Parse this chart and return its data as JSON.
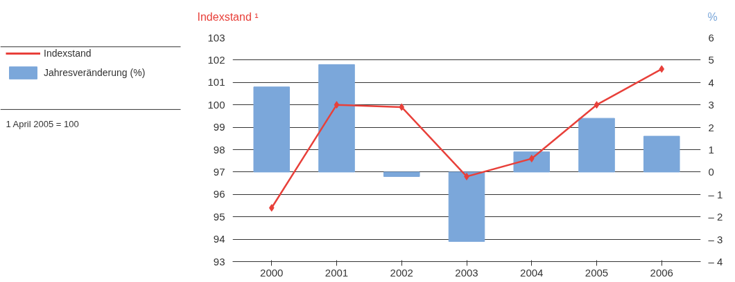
{
  "chart_data": {
    "type": "bar",
    "ylabel": "Indexstand ¹",
    "y2label": "%",
    "categories": [
      "2000",
      "2001",
      "2002",
      "2003",
      "2004",
      "2005",
      "2006"
    ],
    "series": [
      {
        "name": "Indexstand",
        "type": "line",
        "color": "#e8403a",
        "marker": "diamond",
        "values": [
          95.4,
          100.0,
          99.9,
          96.8,
          97.6,
          100.0,
          101.6
        ]
      },
      {
        "name": "Jahresveränderung (%)",
        "axis": "y2",
        "color": "#7ba7da",
        "values": [
          3.8,
          4.8,
          -0.2,
          -3.1,
          0.9,
          2.4,
          1.6
        ]
      }
    ],
    "ylim": [
      93,
      103
    ],
    "yticks": [
      93,
      94,
      95,
      96,
      97,
      98,
      99,
      100,
      101,
      102,
      103
    ],
    "y2lim": [
      -4,
      6
    ],
    "y2ticks": [
      {
        "value": -4,
        "label": "– 4"
      },
      {
        "value": -3,
        "label": "– 3"
      },
      {
        "value": -2,
        "label": "– 2"
      },
      {
        "value": -1,
        "label": "– 1"
      },
      0,
      1,
      2,
      3,
      4,
      5,
      6
    ],
    "grid": "y",
    "legend": "left",
    "annotations": [
      "1   April 2005 = 100"
    ]
  }
}
